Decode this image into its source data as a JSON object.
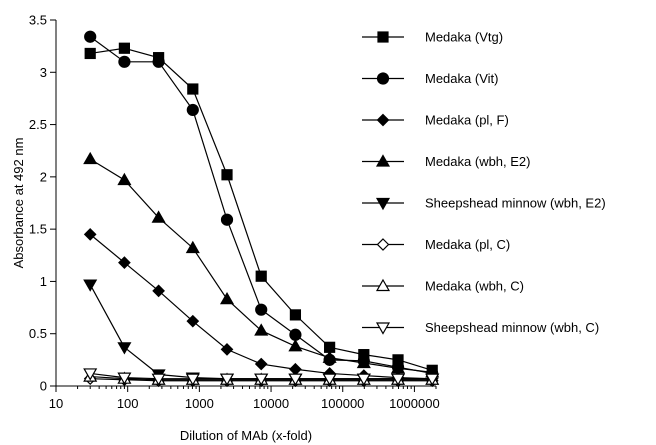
{
  "chart_data": {
    "type": "line",
    "title": "",
    "xlabel": "Dilution of MAb (x-fold)",
    "ylabel": "Absorbance at  492 nm",
    "x_scale": "log",
    "xlim": [
      10,
      2000000
    ],
    "ylim": [
      0,
      3.5
    ],
    "x_ticks": [
      10,
      100,
      1000,
      10000,
      100000,
      1000000
    ],
    "x_tick_labels": [
      "10",
      "100",
      "1000",
      "10000",
      "100000",
      "1000000"
    ],
    "y_ticks": [
      0,
      0.5,
      1,
      1.5,
      2,
      2.5,
      3,
      3.5
    ],
    "y_tick_labels": [
      "0",
      "0.5",
      "1",
      "1.5",
      "2",
      "2.5",
      "3",
      "3.5"
    ],
    "grid": false,
    "legend_position": "right",
    "x": [
      30,
      90,
      270,
      810,
      2430,
      7290,
      21870,
      65610,
      196830,
      590490,
      1771470
    ],
    "series": [
      {
        "name": "Medaka (Vtg)",
        "marker": "square",
        "filled": true,
        "values": [
          3.18,
          3.23,
          3.14,
          2.84,
          2.02,
          1.05,
          0.68,
          0.37,
          0.3,
          0.25,
          0.15
        ]
      },
      {
        "name": "Medaka (Vit)",
        "marker": "circle",
        "filled": true,
        "values": [
          3.34,
          3.1,
          3.1,
          2.64,
          1.59,
          0.73,
          0.49,
          0.25,
          0.24,
          0.18,
          0.12
        ]
      },
      {
        "name": "Medaka (pl, F)",
        "marker": "diamond",
        "filled": true,
        "values": [
          1.45,
          1.18,
          0.91,
          0.62,
          0.35,
          0.21,
          0.16,
          0.12,
          0.1,
          0.08,
          0.07
        ]
      },
      {
        "name": "Medaka (wbh, E2)",
        "marker": "triangle-up",
        "filled": true,
        "values": [
          2.17,
          1.97,
          1.61,
          1.32,
          0.83,
          0.53,
          0.38,
          0.27,
          0.22,
          0.17,
          0.13
        ]
      },
      {
        "name": "Sheepshead minnow (wbh, E2)",
        "marker": "triangle-down",
        "filled": true,
        "values": [
          0.97,
          0.37,
          0.11,
          0.08,
          0.07,
          0.07,
          0.07,
          0.07,
          0.07,
          0.07,
          0.07
        ]
      },
      {
        "name": "Medaka (pl, C)",
        "marker": "diamond",
        "filled": false,
        "values": [
          0.07,
          0.06,
          0.05,
          0.05,
          0.05,
          0.05,
          0.05,
          0.05,
          0.05,
          0.05,
          0.05
        ]
      },
      {
        "name": "Medaka (wbh, C)",
        "marker": "triangle-up",
        "filled": false,
        "values": [
          0.09,
          0.07,
          0.06,
          0.06,
          0.06,
          0.06,
          0.06,
          0.06,
          0.06,
          0.06,
          0.06
        ]
      },
      {
        "name": "Sheepshead minnow (wbh, C)",
        "marker": "triangle-down",
        "filled": false,
        "values": [
          0.12,
          0.08,
          0.07,
          0.07,
          0.07,
          0.07,
          0.07,
          0.07,
          0.07,
          0.07,
          0.07
        ]
      }
    ]
  }
}
